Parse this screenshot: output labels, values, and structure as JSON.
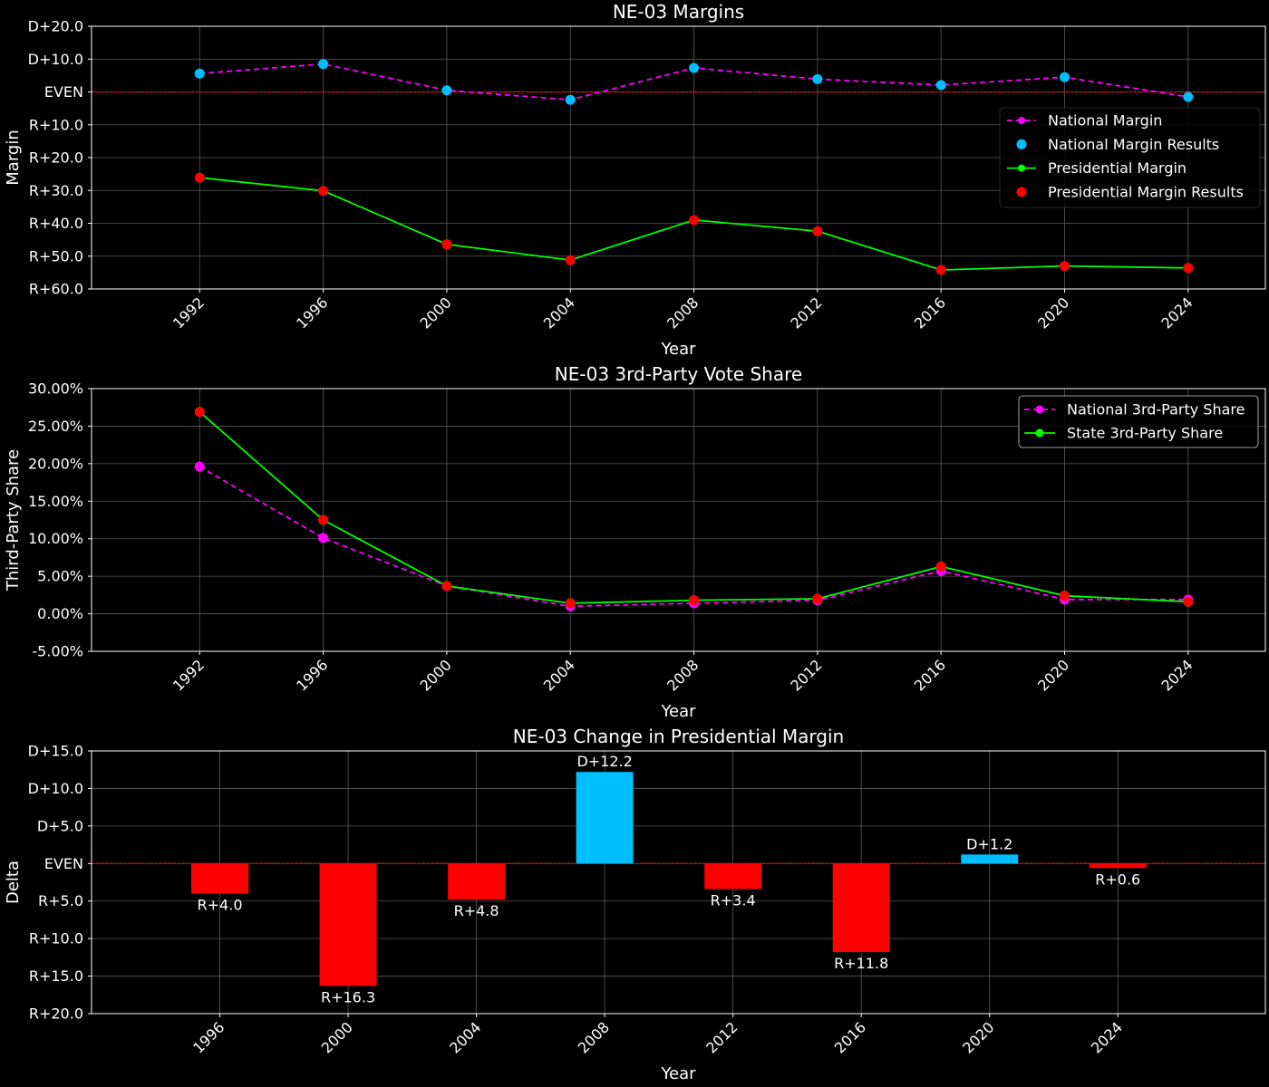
{
  "chart_data": [
    {
      "type": "line",
      "title": "NE-03 Margins",
      "xlabel": "Year",
      "ylabel": "Margin",
      "x": [
        1992,
        1996,
        2000,
        2004,
        2008,
        2012,
        2016,
        2020,
        2024
      ],
      "ylim": [
        -60,
        20
      ],
      "yticks": [
        20,
        10,
        0,
        -10,
        -20,
        -30,
        -40,
        -50,
        -60
      ],
      "ytick_labels": [
        "D+20.0",
        "D+10.0",
        "EVEN",
        "R+10.0",
        "R+20.0",
        "R+30.0",
        "R+40.0",
        "R+50.0",
        "R+60.0"
      ],
      "grid": true,
      "legend_position": "right",
      "reference_line": {
        "y": 0,
        "color": "#ff0000",
        "style": "dashed"
      },
      "series": [
        {
          "name": "National Margin",
          "values": [
            5.6,
            8.5,
            0.5,
            -2.4,
            7.3,
            3.9,
            2.1,
            4.5,
            -1.5
          ],
          "color": "#ff00ff",
          "line": "dashed",
          "marker": "circle-small"
        },
        {
          "name": "National Margin Results",
          "values": [
            5.6,
            8.5,
            0.5,
            -2.4,
            7.3,
            3.9,
            2.1,
            4.5,
            -1.5
          ],
          "color": "#00bfff",
          "line": "none",
          "marker": "circle"
        },
        {
          "name": "Presidential Margin",
          "values": [
            -26.1,
            -30.1,
            -46.4,
            -51.2,
            -39.0,
            -42.4,
            -54.2,
            -53.0,
            -53.6
          ],
          "color": "#00ff00",
          "line": "solid",
          "marker": "circle-small"
        },
        {
          "name": "Presidential Margin Results",
          "values": [
            -26.1,
            -30.1,
            -46.4,
            -51.2,
            -39.0,
            -42.4,
            -54.2,
            -53.0,
            -53.6
          ],
          "color": "#ff0000",
          "line": "none",
          "marker": "circle"
        }
      ]
    },
    {
      "type": "line",
      "title": "NE-03 3rd-Party Vote Share",
      "xlabel": "Year",
      "ylabel": "Third-Party Share",
      "x": [
        1992,
        1996,
        2000,
        2004,
        2008,
        2012,
        2016,
        2020,
        2024
      ],
      "ylim": [
        -5,
        30
      ],
      "yticks": [
        30,
        25,
        20,
        15,
        10,
        5,
        0,
        -5
      ],
      "ytick_labels": [
        "30.00%",
        "25.00%",
        "20.00%",
        "15.00%",
        "10.00%",
        "5.00%",
        "0.00%",
        "-5.00%"
      ],
      "grid": true,
      "legend_position": "top-right",
      "series": [
        {
          "name": "National 3rd-Party Share",
          "values": [
            19.6,
            10.1,
            3.7,
            1.0,
            1.4,
            1.8,
            5.7,
            1.9,
            1.9
          ],
          "color": "#ff00ff",
          "line": "dashed",
          "marker": "circle"
        },
        {
          "name": "State 3rd-Party Share",
          "values": [
            26.9,
            12.5,
            3.7,
            1.4,
            1.8,
            2.0,
            6.3,
            2.4,
            1.6
          ],
          "color": "#00ff00",
          "line": "solid",
          "marker": "circle"
        }
      ],
      "result_marker_color": "#ff0000"
    },
    {
      "type": "bar",
      "title": "NE-03 Change in Presidential Margin",
      "xlabel": "Year",
      "ylabel": "Delta",
      "categories": [
        "1996",
        "2000",
        "2004",
        "2008",
        "2012",
        "2016",
        "2020",
        "2024"
      ],
      "values": [
        -4.0,
        -16.3,
        -4.8,
        12.2,
        -3.4,
        -11.8,
        1.2,
        -0.6
      ],
      "labels": [
        "R+4.0",
        "R+16.3",
        "R+4.8",
        "D+12.2",
        "R+3.4",
        "R+11.8",
        "D+1.2",
        "R+0.6"
      ],
      "ylim": [
        -20,
        15
      ],
      "yticks": [
        15,
        10,
        5,
        0,
        -5,
        -10,
        -15,
        -20
      ],
      "ytick_labels": [
        "D+15.0",
        "D+10.0",
        "D+5.0",
        "EVEN",
        "R+5.0",
        "R+10.0",
        "R+15.0",
        "R+20.0"
      ],
      "grid": true,
      "reference_line": {
        "y": 0,
        "color": "#ff0000",
        "style": "dashed"
      },
      "colors": {
        "positive": "#00bfff",
        "negative": "#ff0000"
      }
    }
  ]
}
